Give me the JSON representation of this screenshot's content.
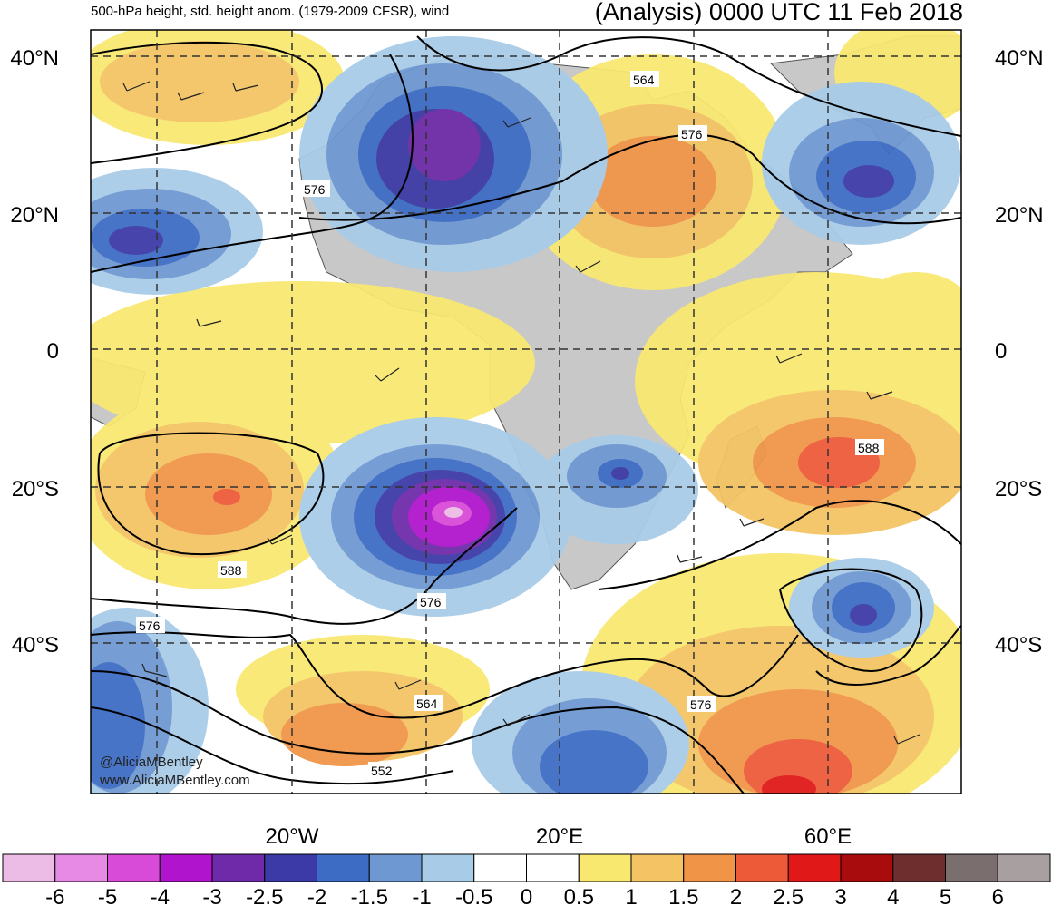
{
  "header": {
    "left_title": "500-hPa height, std. height anom. (1979-2009 CFSR), wind",
    "right_title": "(Analysis) 0000 UTC 11 Feb 2018"
  },
  "axes": {
    "lat_labels": [
      "40°N",
      "20°N",
      "0",
      "20°S",
      "40°S"
    ],
    "lon_labels": [
      "20°W",
      "20°E",
      "60°E"
    ]
  },
  "contour_labels": [
    "564",
    "576",
    "576",
    "588",
    "588",
    "576",
    "576",
    "564",
    "552",
    "576"
  ],
  "credits": [
    "@AliciaMBentley",
    "www.AliciaMBentley.com"
  ],
  "colorbar": {
    "labels": [
      "-6",
      "-5",
      "-4",
      "-3",
      "-2.5",
      "-2",
      "-1.5",
      "-1",
      "-0.5",
      "0",
      "0.5",
      "1",
      "1.5",
      "2",
      "2.5",
      "3",
      "4",
      "5",
      "6"
    ],
    "colors": [
      "#ecbce6",
      "#e78ae6",
      "#d84ad8",
      "#b014cc",
      "#6e2aa8",
      "#3c3aa6",
      "#3c6cc4",
      "#6e98d2",
      "#a8cce8",
      "#ffffff",
      "#ffffff",
      "#f8e870",
      "#f4c464",
      "#f09448",
      "#ec5a38",
      "#e01818",
      "#a80c0c",
      "#6e2e2e",
      "#7a6e6e",
      "#a8a0a0"
    ]
  },
  "colors": {
    "land": "#c8c8c8",
    "contour": "#000000"
  }
}
